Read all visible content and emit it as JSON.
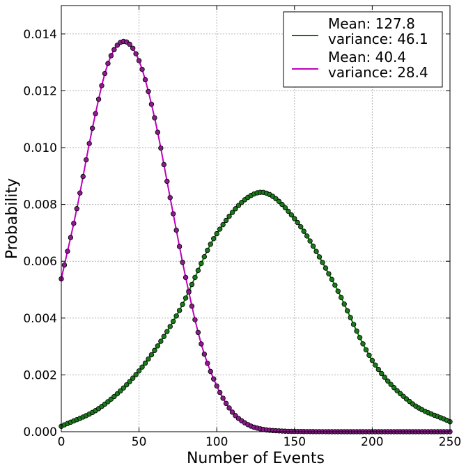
{
  "chart_data": {
    "type": "line",
    "title": "",
    "xlabel": "Number of Events",
    "ylabel": "Probability",
    "xlim": [
      0,
      250
    ],
    "ylim": [
      0,
      0.015
    ],
    "grid": true,
    "legend_position": "top-right",
    "x_ticks": [
      "0",
      "50",
      "100",
      "150",
      "200",
      "250"
    ],
    "y_ticks": [
      "0.000",
      "0.002",
      "0.004",
      "0.006",
      "0.008",
      "0.010",
      "0.012",
      "0.014"
    ],
    "series": [
      {
        "name": "Mean: 127.8\nvariance: 46.1",
        "legend_lines": [
          "Mean: 127.8",
          "variance: 46.1"
        ],
        "color": "#008000",
        "marker_color": "#1a7a1a",
        "x": [
          0,
          25,
          50,
          75,
          100,
          127,
          150,
          175,
          200,
          225,
          250
        ],
        "values": [
          0.00019,
          0.00085,
          0.00214,
          0.00417,
          0.00697,
          0.00842,
          0.0075,
          0.00526,
          0.00251,
          0.00102,
          0.00035
        ]
      },
      {
        "name": "Mean: 40.4\nvariance: 28.4",
        "legend_lines": [
          "Mean: 40.4",
          "variance: 28.4"
        ],
        "color": "#bf00bf",
        "marker_color": "#8b1a8b",
        "x": [
          0,
          10,
          20,
          30,
          40,
          50,
          60,
          70,
          80,
          90,
          100,
          110,
          120,
          130,
          140,
          150,
          175,
          200,
          250
        ],
        "values": [
          0.00538,
          0.00785,
          0.01068,
          0.01296,
          0.01374,
          0.01306,
          0.01105,
          0.00824,
          0.00543,
          0.00309,
          0.00161,
          0.00069,
          0.00025,
          8e-05,
          3e-05,
          1e-05,
          0.0,
          0.0,
          0.0
        ]
      }
    ]
  }
}
